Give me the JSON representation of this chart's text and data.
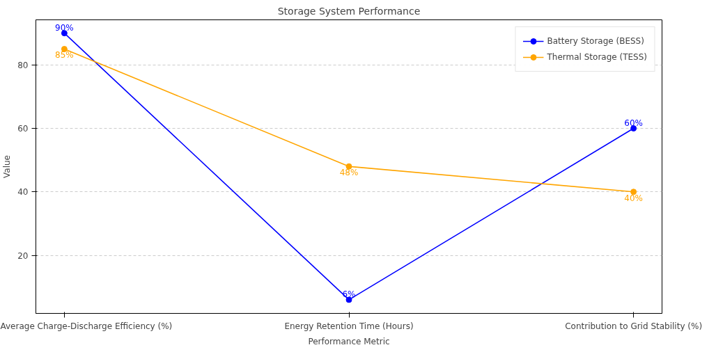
{
  "chart_data": {
    "type": "line",
    "title": "Storage System Performance",
    "xlabel": "Performance Metric",
    "ylabel": "Value",
    "categories": [
      "Average Charge-Discharge Efficiency (%)",
      "Energy Retention Time (Hours)",
      "Contribution to Grid Stability (%)"
    ],
    "series": [
      {
        "name": "Battery Storage (BESS)",
        "color": "#0000ff",
        "values": [
          90,
          6,
          60
        ],
        "value_labels": [
          "90%",
          "6%",
          "60%"
        ]
      },
      {
        "name": "Thermal Storage (TESS)",
        "color": "#ffa500",
        "values": [
          85,
          48,
          40
        ],
        "value_labels": [
          "85%",
          "48%",
          "40%"
        ]
      }
    ],
    "ylim": [
      1.7,
      94.2
    ],
    "yticks": [
      20,
      40,
      60,
      80
    ],
    "grid": "y",
    "legend": "top right",
    "marker": "circle",
    "line_style": "solid"
  }
}
